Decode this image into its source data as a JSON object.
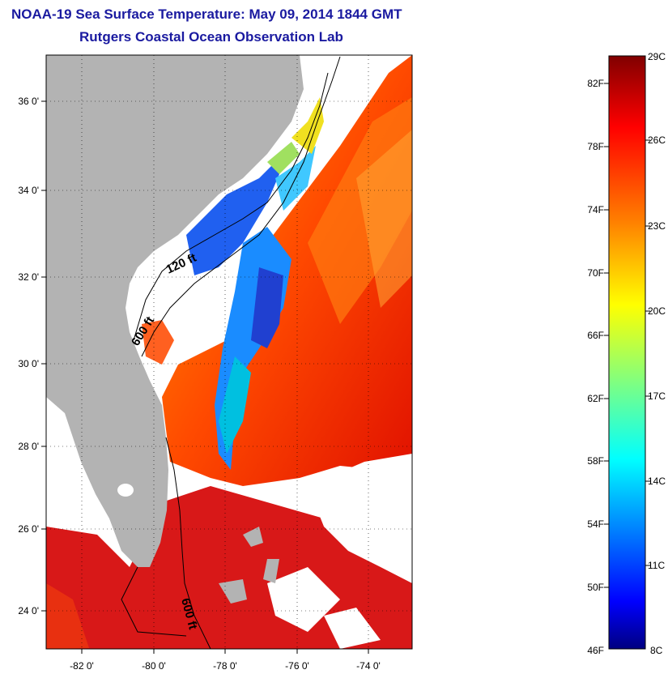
{
  "title": "NOAA-19 Sea Surface Temperature:  May 09, 2014 1844 GMT",
  "subtitle": "Rutgers Coastal Ocean Observation Lab",
  "map": {
    "lon_range": [
      -83.0,
      -72.5
    ],
    "lat_range": [
      23.0,
      37.0
    ],
    "lat_ticks": [
      "24 0'",
      "26 0'",
      "28 0'",
      "30 0'",
      "32 0'",
      "34 0'",
      "36 0'"
    ],
    "lat_values": [
      24,
      26,
      28,
      30,
      32,
      34,
      36
    ],
    "lon_ticks": [
      "-82 0'",
      "-80 0'",
      "-78 0'",
      "-76 0'",
      "-74 0'"
    ],
    "lon_values": [
      -82,
      -80,
      -78,
      -76,
      -74
    ],
    "contour_labels": [
      "120 ft",
      "600 ft",
      "600 ft"
    ],
    "land_color": "#b2b2b2",
    "cloud_color": "#ffffff"
  },
  "colorbar": {
    "f_labels": [
      "82F",
      "78F",
      "74F",
      "70F",
      "66F",
      "62F",
      "58F",
      "54F",
      "50F",
      "46F"
    ],
    "c_labels": [
      "29C",
      "26C",
      "23C",
      "20C",
      "17C",
      "14C",
      "11C",
      "8C"
    ],
    "colors": [
      "#800000",
      "#ff0000",
      "#ff8000",
      "#ffff00",
      "#80ff80",
      "#00ffff",
      "#0080ff",
      "#0000ff",
      "#000080"
    ]
  }
}
